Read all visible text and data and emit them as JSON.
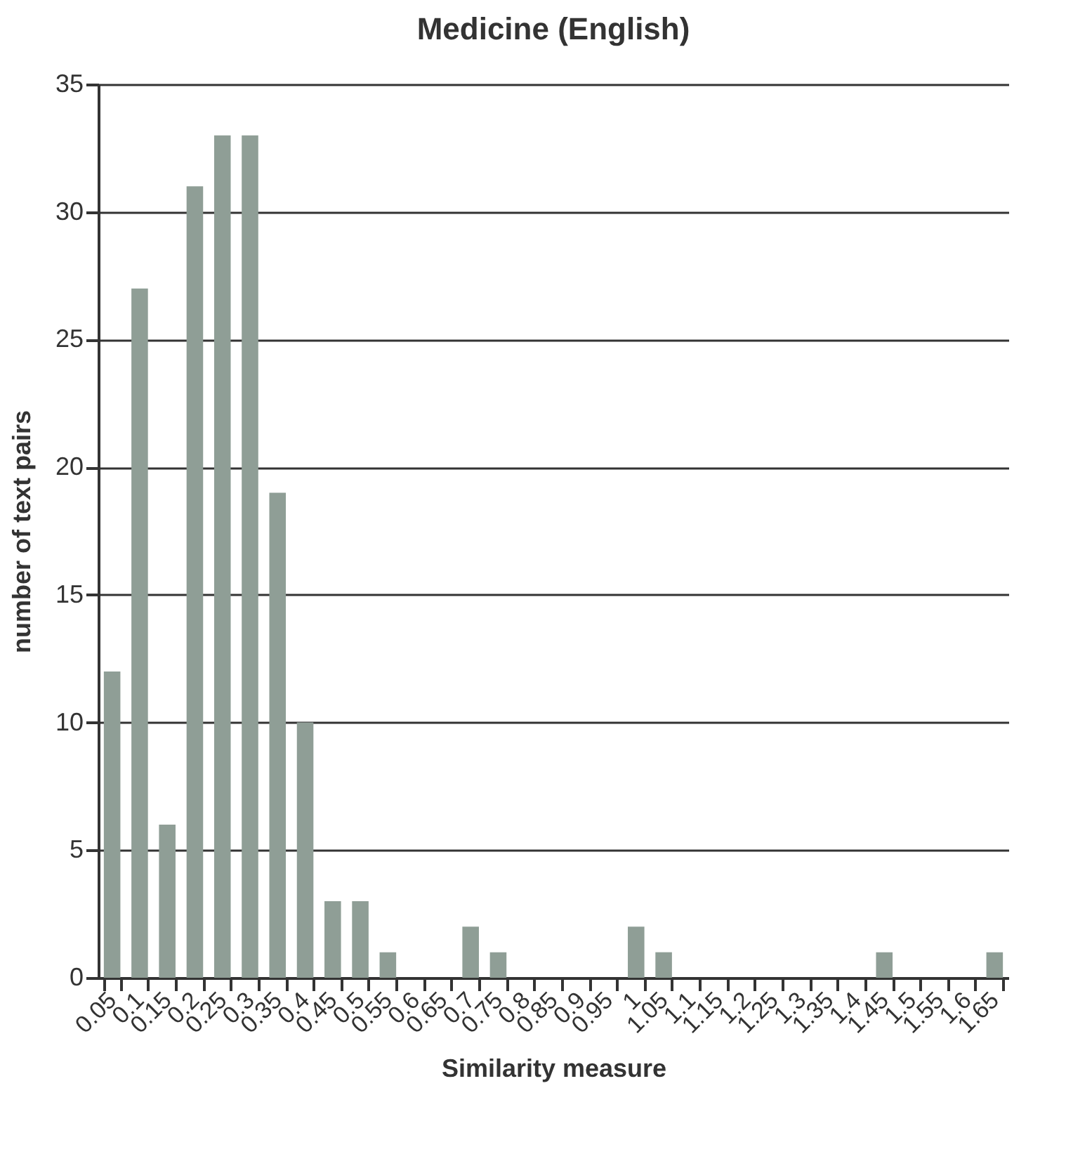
{
  "chart_data": {
    "type": "bar",
    "title": "Medicine (English)",
    "xlabel": "Similarity measure",
    "ylabel": "number of text pairs",
    "categories": [
      "0.05",
      "0.1",
      "0.15",
      "0.2",
      "0.25",
      "0.3",
      "0.35",
      "0.4",
      "0.45",
      "0.5",
      "0.55",
      "0.6",
      "0.65",
      "0.7",
      "0.75",
      "0.8",
      "0.85",
      "0.9",
      "0.95",
      "1",
      "1.05",
      "1.1",
      "1.15",
      "1.2",
      "1.25",
      "1.3",
      "1.35",
      "1.4",
      "1.45",
      "1.5",
      "1.55",
      "1.6",
      "1.65"
    ],
    "values": [
      12,
      27,
      6,
      31,
      33,
      33,
      19,
      10,
      3,
      3,
      1,
      0,
      0,
      2,
      1,
      0,
      0,
      0,
      0,
      2,
      1,
      0,
      0,
      0,
      0,
      0,
      0,
      0,
      1,
      0,
      0,
      0,
      1
    ],
    "color": "#8f9e96",
    "ylim": [
      0,
      35
    ],
    "yticks": [
      0,
      5,
      10,
      15,
      20,
      25,
      30,
      35
    ],
    "grid": "y"
  }
}
